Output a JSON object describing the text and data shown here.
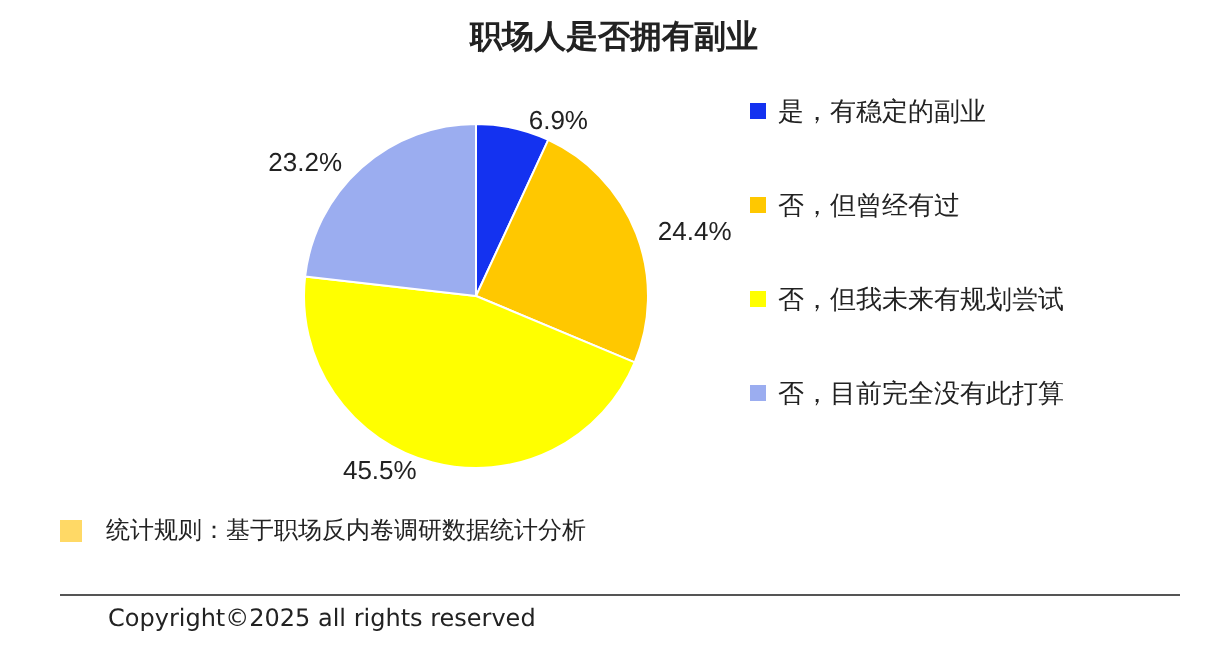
{
  "chart_data": {
    "type": "pie",
    "title": "职场人是否拥有副业",
    "categories": [
      "是，有稳定的副业",
      "否，但曾经有过",
      "否，但我未来有规划尝试",
      "否，目前完全没有此打算"
    ],
    "values": [
      6.9,
      24.4,
      45.5,
      23.2
    ],
    "colors": [
      "#1432f0",
      "#ffc800",
      "#ffff00",
      "#9badf0"
    ],
    "value_labels": [
      "6.9%",
      "24.4%",
      "45.5%",
      "23.2%"
    ],
    "legend": "right",
    "annotations": [
      "统计规则：基于职场反内卷调研数据统计分析",
      "Copyright©2025 all rights reserved"
    ]
  }
}
